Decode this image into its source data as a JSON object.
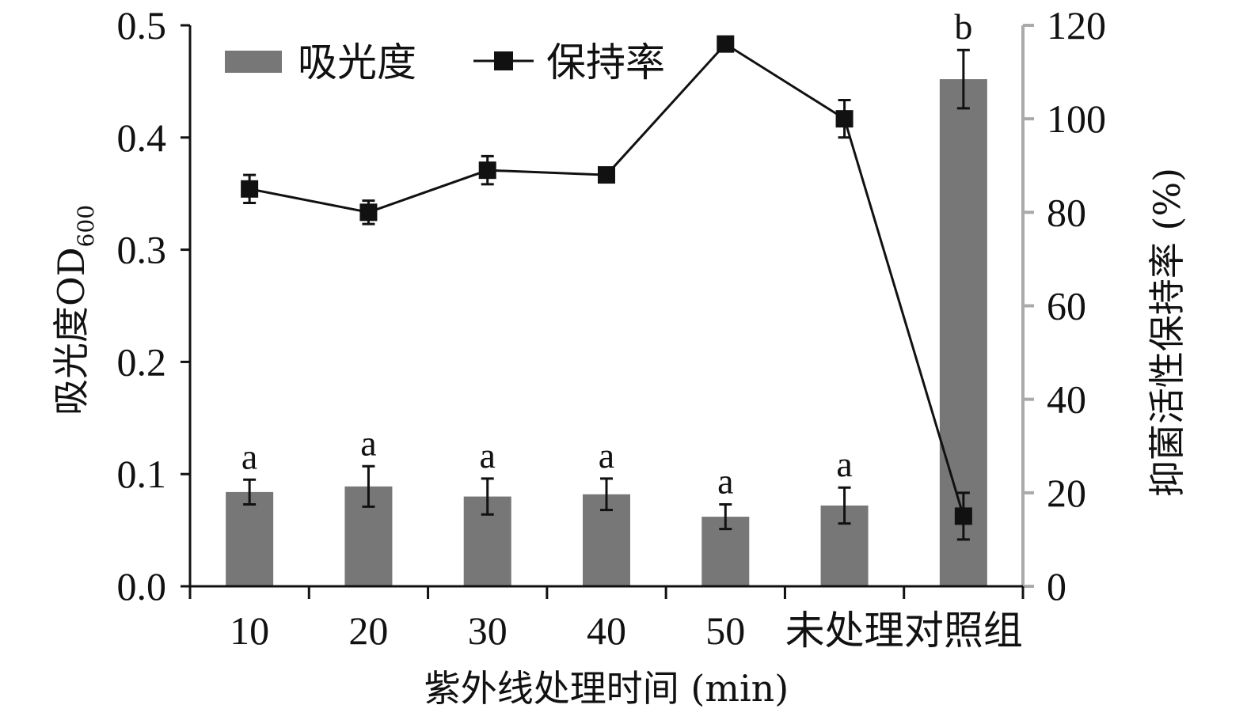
{
  "chart_data": {
    "type": "bar",
    "categories": [
      "10",
      "20",
      "30",
      "40",
      "50",
      "未处理",
      "对照组"
    ],
    "xlabel": "紫外线处理时间 (min)",
    "ylabel_main": "吸光度OD",
    "ylabel_sub": "600",
    "y2label": "抑菌活性保持率 (%)",
    "ylim": [
      0,
      0.5
    ],
    "y_ticks": [
      "0.0",
      "0.1",
      "0.2",
      "0.3",
      "0.4",
      "0.5"
    ],
    "y2lim": [
      0,
      120
    ],
    "y2_ticks": [
      "0",
      "20",
      "40",
      "60",
      "80",
      "100",
      "120"
    ],
    "legend_position": "top-left",
    "grid": false,
    "series": [
      {
        "name": "吸光度",
        "type": "bar",
        "axis": "left",
        "color": "#777777",
        "values": [
          0.084,
          0.089,
          0.08,
          0.082,
          0.062,
          0.072,
          0.452
        ],
        "errors": [
          0.011,
          0.018,
          0.016,
          0.014,
          0.011,
          0.016,
          0.026
        ],
        "labels": [
          "a",
          "a",
          "a",
          "a",
          "a",
          "a",
          "b"
        ]
      },
      {
        "name": "保持率",
        "type": "line",
        "axis": "right",
        "color": "#111111",
        "values": [
          85,
          80,
          89,
          88,
          116,
          100,
          15
        ],
        "errors": [
          3,
          2.5,
          3,
          1.5,
          1.5,
          4,
          5
        ]
      }
    ]
  }
}
